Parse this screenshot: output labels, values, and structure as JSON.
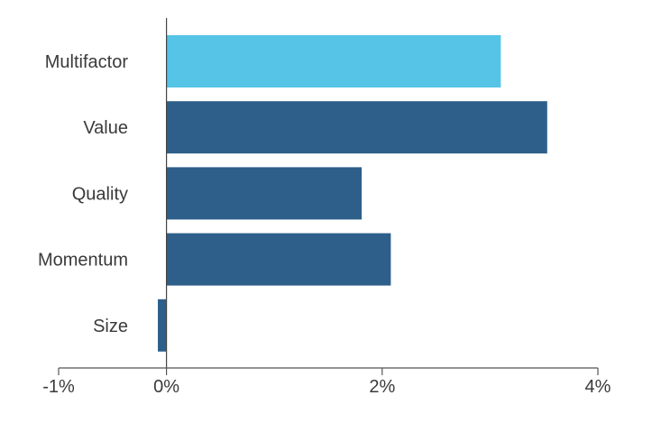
{
  "chart_data": {
    "type": "bar",
    "orientation": "horizontal",
    "categories": [
      "Multifactor",
      "Value",
      "Quality",
      "Momentum",
      "Size"
    ],
    "values": [
      3.1,
      3.53,
      1.81,
      2.08,
      -0.08
    ],
    "unit": "%",
    "xlim": [
      -1,
      4
    ],
    "xticks": [
      -1,
      0,
      2,
      4
    ],
    "xtick_labels": [
      "-1%",
      "0%",
      "2%",
      "4%"
    ],
    "title": "",
    "xlabel": "",
    "ylabel": "",
    "grid": false,
    "legend": "none",
    "colors": {
      "highlight": "#56C4E6",
      "default": "#2D5F8A",
      "highlight_category": "Multifactor"
    }
  }
}
